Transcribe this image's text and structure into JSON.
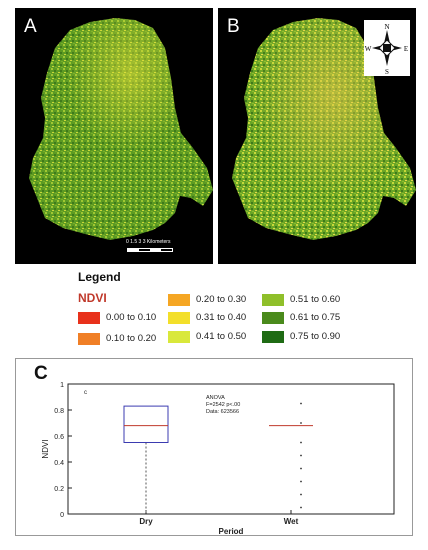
{
  "panels": {
    "a": {
      "letter": "A"
    },
    "b": {
      "letter": "B"
    },
    "scalebar": {
      "ticks": "0  1.5  3",
      "unit": "3 Kilometers"
    },
    "compass": {
      "n": "N",
      "s": "S",
      "e": "E",
      "w": "W"
    }
  },
  "legend": {
    "title": "Legend",
    "subtitle": "NDVI",
    "classes": [
      {
        "range": "0.00 to 0.10",
        "color": "#e8311b"
      },
      {
        "range": "0.10 to 0.20",
        "color": "#f07f26"
      },
      {
        "range": "0.20 to 0.30",
        "color": "#f5a623"
      },
      {
        "range": "0.31 to 0.40",
        "color": "#f3df2a"
      },
      {
        "range": "0.41 to 0.50",
        "color": "#d9e83b"
      },
      {
        "range": "0.51 to 0.60",
        "color": "#8fbf2a"
      },
      {
        "range": "0.61 to 0.75",
        "color": "#4a8a1c"
      },
      {
        "range": "0.75 to 0.90",
        "color": "#1f6b14"
      }
    ]
  },
  "panel_c": {
    "letter": "C"
  },
  "chart_data": {
    "type": "boxplot",
    "xlabel": "Period",
    "ylabel": "NDVI",
    "ylim": [
      0,
      1
    ],
    "yticks": [
      "0",
      "0.2",
      "0.4",
      "0.6",
      "0.8",
      "1"
    ],
    "categories": [
      "Dry",
      "Wet"
    ],
    "corner_label": "c",
    "annotation": [
      "ANOVA",
      "F=2542 p<.00",
      "Data: 623566"
    ],
    "groups": [
      {
        "category": "Dry",
        "q1": 0.55,
        "median": 0.68,
        "q3": 0.83,
        "whisker_low": 0.0,
        "whisker_high": 0.83,
        "outliers": []
      },
      {
        "category": "Wet",
        "median": 0.68,
        "outliers": [
          0.85,
          0.7,
          0.55,
          0.45,
          0.35,
          0.25,
          0.15,
          0.05
        ]
      }
    ],
    "colors": {
      "box": "#3b3bb0",
      "median": "#c0392b",
      "whisker": "#555555"
    }
  }
}
